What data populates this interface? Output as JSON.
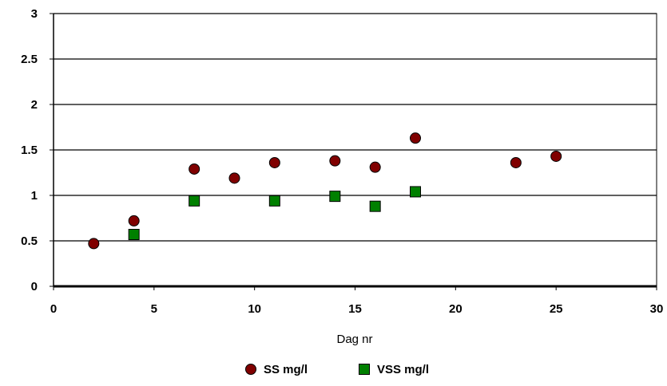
{
  "chart_data": {
    "type": "scatter",
    "title": "",
    "xlabel": "Dag nr",
    "ylabel": "",
    "xlim": [
      0,
      30
    ],
    "ylim": [
      0,
      3
    ],
    "x_ticks": [
      "0",
      "5",
      "10",
      "15",
      "20",
      "25",
      "30"
    ],
    "y_ticks": [
      "0",
      "0.5",
      "1",
      "1.5",
      "2",
      "2.5",
      "3"
    ],
    "grid": "horizontal",
    "legend_position": "bottom",
    "series": [
      {
        "name": "SS mg/l",
        "marker": "circle",
        "color": "#800000",
        "points": [
          {
            "x": 2,
            "y": 0.47
          },
          {
            "x": 4,
            "y": 0.72
          },
          {
            "x": 7,
            "y": 1.29
          },
          {
            "x": 9,
            "y": 1.19
          },
          {
            "x": 11,
            "y": 1.36
          },
          {
            "x": 14,
            "y": 1.38
          },
          {
            "x": 16,
            "y": 1.31
          },
          {
            "x": 18,
            "y": 1.63
          },
          {
            "x": 23,
            "y": 1.36
          },
          {
            "x": 25,
            "y": 1.43
          }
        ]
      },
      {
        "name": "VSS mg/l",
        "marker": "square",
        "color": "#008000",
        "points": [
          {
            "x": 4,
            "y": 0.57
          },
          {
            "x": 7,
            "y": 0.94
          },
          {
            "x": 11,
            "y": 0.94
          },
          {
            "x": 14,
            "y": 0.99
          },
          {
            "x": 16,
            "y": 0.88
          },
          {
            "x": 18,
            "y": 1.04
          }
        ]
      }
    ]
  }
}
